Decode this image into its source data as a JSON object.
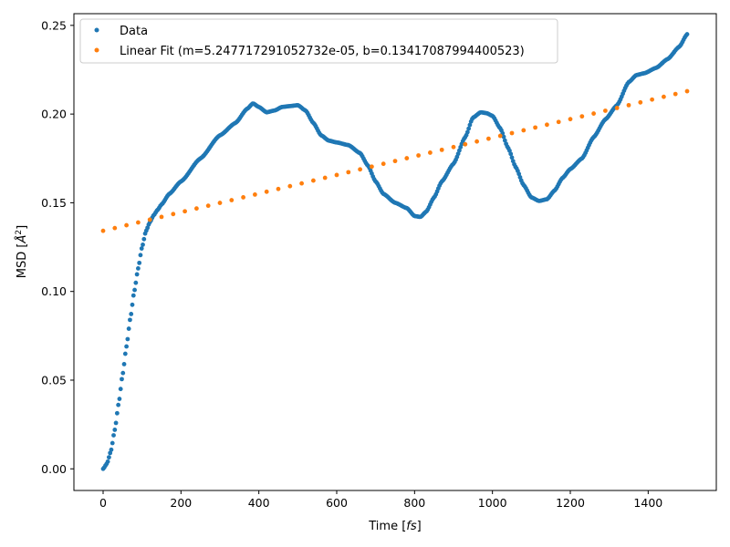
{
  "chart_data": {
    "type": "scatter",
    "title": "",
    "xlabel": "Time [fs]",
    "xlabel_parts": [
      "Time [",
      "fs",
      "]"
    ],
    "ylabel": "MSD [Å²]",
    "ylabel_parts": [
      "MSD [",
      "Å",
      "2",
      "]"
    ],
    "xlim": [
      -75,
      1575
    ],
    "ylim": [
      -0.0122,
      0.2566
    ],
    "xticks": [
      0,
      200,
      400,
      600,
      800,
      1000,
      1200,
      1400
    ],
    "xtick_labels": [
      "0",
      "200",
      "400",
      "600",
      "800",
      "1000",
      "1200",
      "1400"
    ],
    "yticks": [
      0.0,
      0.05,
      0.1,
      0.15,
      0.2,
      0.25
    ],
    "ytick_labels": [
      "0.00",
      "0.05",
      "0.10",
      "0.15",
      "0.20",
      "0.25"
    ],
    "grid": false,
    "legend_position": "top-left",
    "series": [
      {
        "name": "Data",
        "color": "#1f77b4",
        "keypoints_x": [
          0,
          10,
          20,
          30,
          40,
          50,
          60,
          70,
          80,
          90,
          100,
          110,
          120,
          130,
          140,
          150,
          170,
          200,
          250,
          300,
          340,
          370,
          385,
          400,
          420,
          440,
          460,
          480,
          500,
          520,
          540,
          560,
          580,
          600,
          630,
          660,
          680,
          700,
          720,
          750,
          780,
          800,
          815,
          830,
          850,
          870,
          900,
          930,
          950,
          970,
          985,
          1000,
          1020,
          1040,
          1060,
          1080,
          1100,
          1120,
          1140,
          1160,
          1180,
          1200,
          1230,
          1260,
          1290,
          1320,
          1350,
          1370,
          1390,
          1420,
          1450,
          1480,
          1500
        ],
        "keypoints_y": [
          0.0,
          0.003,
          0.01,
          0.022,
          0.037,
          0.053,
          0.069,
          0.085,
          0.1,
          0.113,
          0.125,
          0.134,
          0.139,
          0.143,
          0.146,
          0.149,
          0.155,
          0.162,
          0.175,
          0.188,
          0.195,
          0.203,
          0.206,
          0.204,
          0.201,
          0.202,
          0.204,
          0.2045,
          0.205,
          0.202,
          0.195,
          0.188,
          0.185,
          0.184,
          0.1825,
          0.178,
          0.171,
          0.162,
          0.155,
          0.15,
          0.147,
          0.1425,
          0.142,
          0.145,
          0.153,
          0.162,
          0.172,
          0.187,
          0.198,
          0.201,
          0.2005,
          0.199,
          0.192,
          0.181,
          0.17,
          0.16,
          0.153,
          0.151,
          0.152,
          0.157,
          0.164,
          0.169,
          0.175,
          0.187,
          0.197,
          0.205,
          0.218,
          0.222,
          0.223,
          0.226,
          0.231,
          0.238,
          0.245
        ],
        "sample_step": 3
      },
      {
        "name": "Linear Fit (m=5.247717291052732e-05, b=0.13417087994400523)",
        "color": "#ff7f0e",
        "slope": 5.247717291052732e-05,
        "intercept": 0.13417087994400523,
        "x_start": 0,
        "x_end": 1500,
        "sample_step": 30
      }
    ]
  }
}
